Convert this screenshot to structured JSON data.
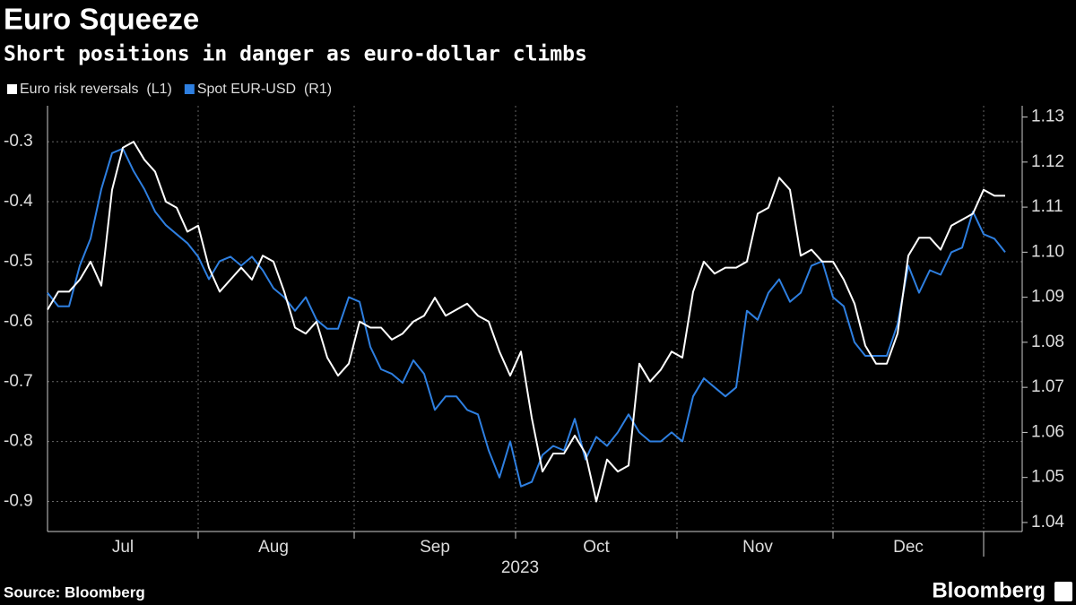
{
  "chart_data": {
    "type": "line",
    "title": "Euro Squeeze",
    "subtitle": "Short positions in danger as euro-dollar climbs",
    "xlabel": "2023",
    "source": "Source: Bloomberg",
    "logo": "Bloomberg",
    "grid": true,
    "categories": [
      null,
      null,
      null,
      null,
      null,
      null,
      null,
      "Jul",
      null,
      null,
      null,
      null,
      null,
      null,
      null,
      null,
      null,
      null,
      null,
      null,
      null,
      "Aug",
      null,
      null,
      null,
      null,
      null,
      null,
      null,
      null,
      null,
      null,
      null,
      null,
      null,
      null,
      "Sep",
      null,
      null,
      null,
      null,
      null,
      null,
      null,
      null,
      null,
      null,
      null,
      null,
      null,
      null,
      "Oct",
      null,
      null,
      null,
      null,
      null,
      null,
      null,
      null,
      null,
      null,
      null,
      null,
      null,
      null,
      "Nov",
      null,
      null,
      null,
      null,
      null,
      null,
      null,
      null,
      null,
      null,
      null,
      null,
      null,
      "Dec",
      null,
      null,
      null,
      null,
      null,
      null,
      null,
      null,
      null
    ],
    "ylim": [
      -0.95,
      -0.24
    ],
    "yticks": [
      -0.9,
      -0.8,
      -0.7,
      -0.6,
      -0.5,
      -0.4,
      -0.3
    ],
    "y2lim": [
      1.038,
      1.1325
    ],
    "y2ticks": [
      1.04,
      1.05,
      1.06,
      1.07,
      1.08,
      1.09,
      {
        "value": 1.1,
        "label": "1.10"
      },
      1.11,
      1.12,
      1.13
    ],
    "series": [
      {
        "name": "Euro risk reversals  (L1)",
        "color": "#ffffff",
        "axis": "y",
        "values": [
          -0.58,
          -0.55,
          -0.55,
          -0.53,
          -0.5,
          -0.54,
          -0.38,
          -0.31,
          -0.3,
          -0.33,
          -0.35,
          -0.4,
          -0.41,
          -0.45,
          -0.44,
          -0.51,
          -0.55,
          -0.53,
          -0.51,
          -0.53,
          -0.49,
          -0.5,
          -0.55,
          -0.61,
          -0.62,
          -0.6,
          -0.66,
          -0.69,
          -0.67,
          -0.6,
          -0.61,
          -0.61,
          -0.63,
          -0.62,
          -0.6,
          -0.59,
          -0.56,
          -0.59,
          -0.58,
          -0.57,
          -0.59,
          -0.6,
          -0.65,
          -0.69,
          -0.65,
          -0.76,
          -0.85,
          -0.82,
          -0.82,
          -0.79,
          -0.82,
          -0.9,
          -0.83,
          -0.85,
          -0.84,
          -0.67,
          -0.7,
          -0.68,
          -0.65,
          -0.66,
          -0.55,
          -0.5,
          -0.52,
          -0.51,
          -0.51,
          -0.5,
          -0.42,
          -0.41,
          -0.36,
          -0.38,
          -0.49,
          -0.48,
          -0.5,
          -0.5,
          -0.53,
          -0.57,
          -0.64,
          -0.67,
          -0.67,
          -0.62,
          -0.49,
          -0.46,
          -0.46,
          -0.48,
          -0.44,
          -0.43,
          -0.42,
          -0.38,
          -0.39,
          -0.39
        ]
      },
      {
        "name": "Spot EUR-USD  (R1)",
        "color": "#2e7fe0",
        "axis": "y2",
        "values": [
          1.091,
          1.088,
          1.088,
          1.097,
          1.103,
          1.114,
          1.122,
          1.123,
          1.118,
          1.114,
          1.109,
          1.106,
          1.104,
          1.102,
          1.099,
          1.094,
          1.098,
          1.099,
          1.097,
          1.099,
          1.096,
          1.092,
          1.09,
          1.087,
          1.09,
          1.085,
          1.083,
          1.083,
          1.09,
          1.089,
          1.079,
          1.074,
          1.073,
          1.071,
          1.076,
          1.073,
          1.065,
          1.068,
          1.068,
          1.065,
          1.064,
          1.056,
          1.05,
          1.058,
          1.048,
          1.049,
          1.055,
          1.057,
          1.056,
          1.063,
          1.054,
          1.059,
          1.057,
          1.06,
          1.064,
          1.06,
          1.058,
          1.058,
          1.06,
          1.058,
          1.068,
          1.072,
          1.07,
          1.068,
          1.07,
          1.087,
          1.085,
          1.091,
          1.094,
          1.089,
          1.091,
          1.097,
          1.098,
          1.09,
          1.088,
          1.08,
          1.077,
          1.077,
          1.077,
          1.084,
          1.097,
          1.091,
          1.096,
          1.095,
          1.1,
          1.101,
          1.109,
          1.104,
          1.103,
          1.1
        ]
      }
    ]
  }
}
